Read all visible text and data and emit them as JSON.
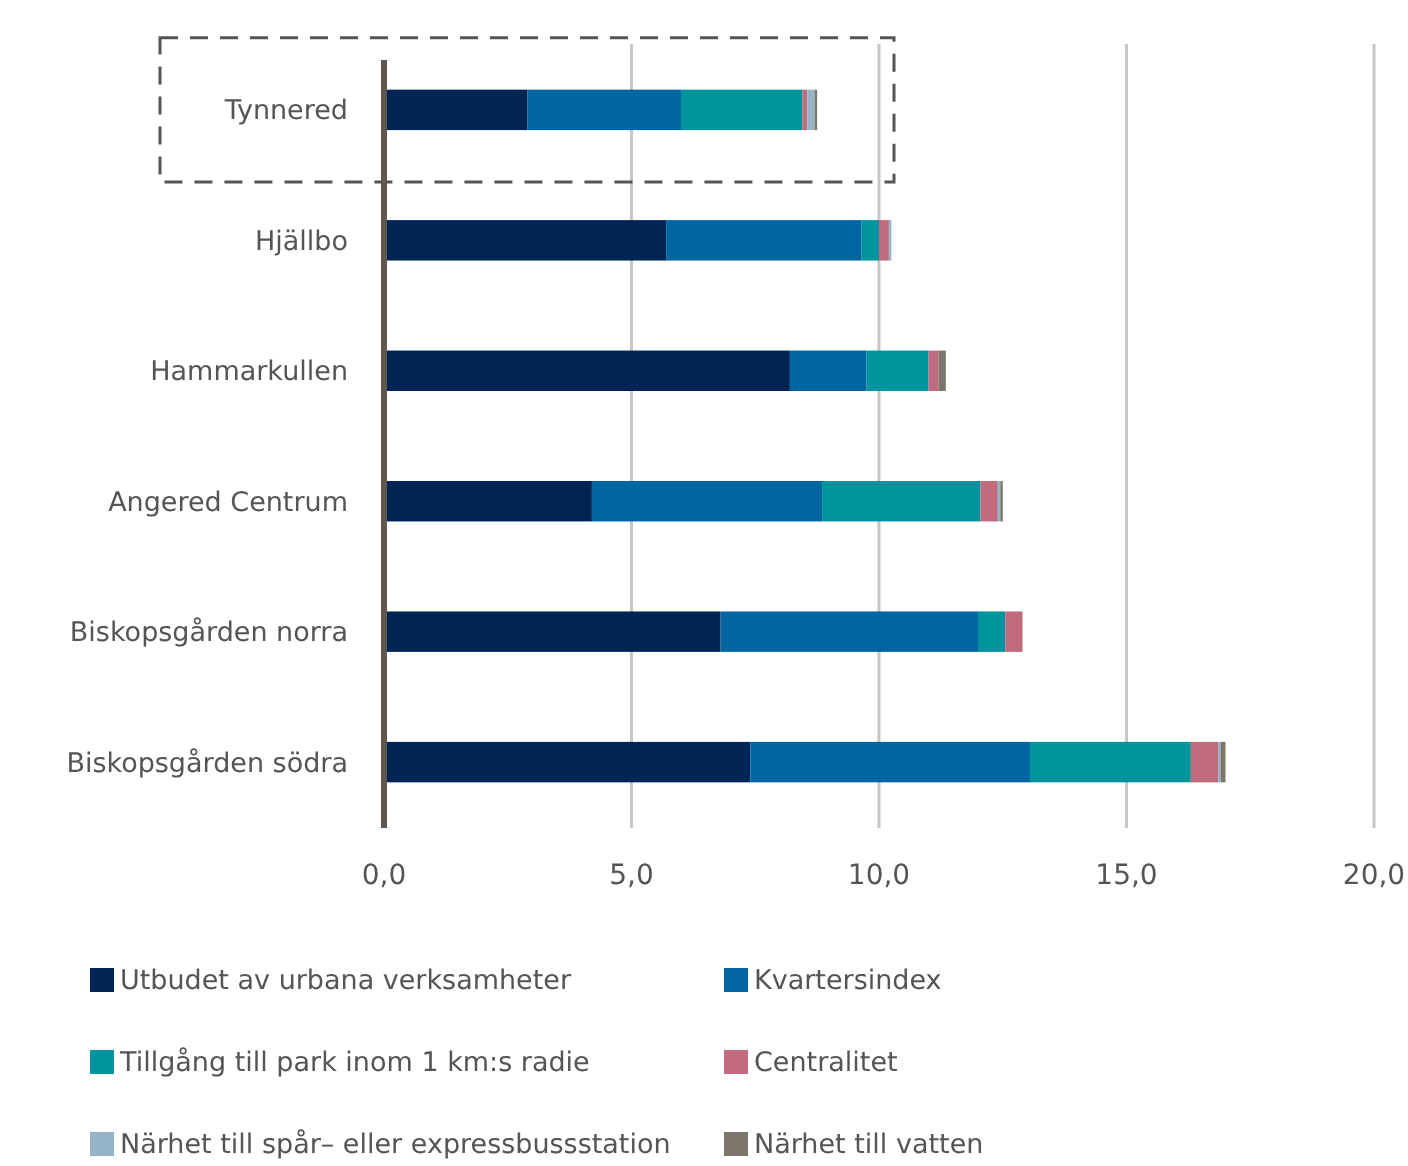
{
  "chart_data": {
    "type": "bar",
    "orientation": "horizontal",
    "stacked": true,
    "categories": [
      "Tynnered",
      "Hjällbo",
      "Hammarkullen",
      "Angered Centrum",
      "Biskopsgården norra",
      "Biskopsgården södra"
    ],
    "series": [
      {
        "name": "Utbudet av urbana verksamheter",
        "color": "#002554",
        "values": [
          2.9,
          5.7,
          8.2,
          4.2,
          6.8,
          7.4
        ]
      },
      {
        "name": "Kvartersindex",
        "color": "#0066a1",
        "values": [
          3.1,
          3.95,
          1.55,
          4.65,
          5.2,
          5.65
        ]
      },
      {
        "name": "Tillgång till park inom 1 km:s radie",
        "color": "#00959e",
        "values": [
          2.45,
          0.35,
          1.25,
          3.2,
          0.55,
          3.25
        ]
      },
      {
        "name": "Centralitet",
        "color": "#c06b7e",
        "values": [
          0.1,
          0.2,
          0.2,
          0.35,
          0.35,
          0.55
        ]
      },
      {
        "name": "Närhet till spår– eller expressbussstation",
        "color": "#94b4c8",
        "values": [
          0.15,
          0.05,
          0,
          0.05,
          0,
          0.05
        ]
      },
      {
        "name": "Närhet till vatten",
        "color": "#7d766b",
        "values": [
          0.05,
          0,
          0.15,
          0.05,
          0,
          0.1
        ]
      }
    ],
    "xlim": [
      0,
      20
    ],
    "xticks": [
      {
        "value": 0,
        "label": "0,0"
      },
      {
        "value": 5,
        "label": "5,0"
      },
      {
        "value": 10,
        "label": "10,0"
      },
      {
        "value": 15,
        "label": "15,0"
      },
      {
        "value": 20,
        "label": "20,0"
      }
    ],
    "grid": "x",
    "legend": "bottom"
  }
}
